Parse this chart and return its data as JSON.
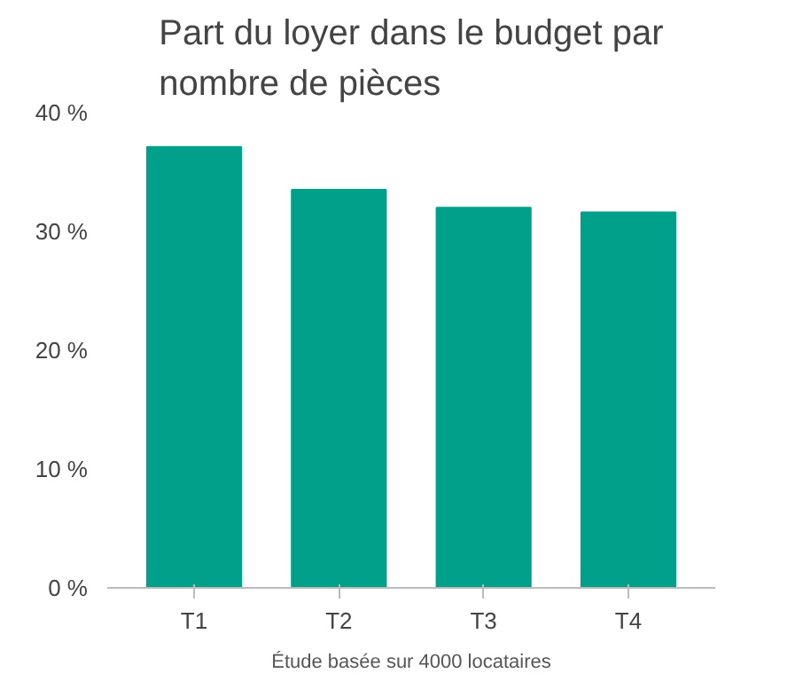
{
  "chart_data": {
    "type": "bar",
    "title": "Part du loyer dans le budget par nombre de pièces",
    "categories": [
      "T1",
      "T2",
      "T3",
      "T4"
    ],
    "values": [
      37.1,
      33.5,
      32.0,
      31.6
    ],
    "color": "#00a08a",
    "ylim": [
      0,
      40
    ],
    "yticks": [
      {
        "value": 0,
        "label": "0 %"
      },
      {
        "value": 10,
        "label": "10 %"
      },
      {
        "value": 20,
        "label": "20 %"
      },
      {
        "value": 30,
        "label": "30 %"
      },
      {
        "value": 40,
        "label": "40 %"
      }
    ],
    "grid": false,
    "annotations": [
      "Étude basée sur 4000 locataires"
    ]
  }
}
